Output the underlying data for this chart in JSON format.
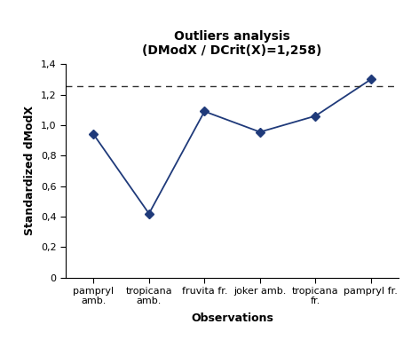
{
  "title_line1": "Outliers analysis",
  "title_line2": "(DModX / DCrit(X)=1,258)",
  "xlabel": "Observations",
  "ylabel": "Standardized dModX",
  "categories": [
    "pampryl\namb.",
    "tropicana\namb.",
    "fruvita fr.",
    "joker amb.",
    "tropicana\nfr.",
    "pampryl fr."
  ],
  "values": [
    0.94,
    0.42,
    1.09,
    0.955,
    1.06,
    1.3
  ],
  "threshold": 1.258,
  "ylim": [
    0,
    1.4
  ],
  "yticks": [
    0,
    0.2,
    0.4,
    0.6,
    0.8,
    1.0,
    1.2,
    1.4
  ],
  "ytick_labels": [
    "0",
    "0,2",
    "0,4",
    "0,6",
    "0,8",
    "1,0",
    "1,2",
    "1,4"
  ],
  "line_color": "#1F3A7A",
  "marker": "D",
  "marker_size": 5,
  "title_fontsize": 10,
  "axis_label_fontsize": 9,
  "tick_fontsize": 8,
  "background_color": "#ffffff",
  "threshold_line_style": "--",
  "threshold_line_color": "#333333"
}
